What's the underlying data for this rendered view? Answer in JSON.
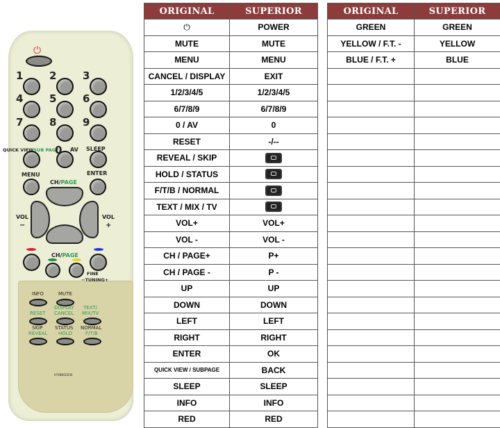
{
  "remote": {
    "numbers": [
      "1",
      "2",
      "3",
      "4",
      "5",
      "6",
      "7",
      "8",
      "9",
      "0"
    ],
    "labels": {
      "quick_view": "QUICK VIEW",
      "sub_page": "SUB PAGE",
      "av": "AV",
      "sleep": "SLEEP",
      "menu": "MENU",
      "enter": "ENTER",
      "ch": "CH/",
      "page": "PAGE",
      "vol": "VOL",
      "minus": "−",
      "plus": "+",
      "fine": "FINE",
      "tuning": "−TUNING+",
      "info": "INFO",
      "mute": "MUTE",
      "reset": "RESET",
      "display": "DISPLAY",
      "cancel": "CANCEL",
      "text": "TEXT/",
      "mix_tv": "MIX/TV",
      "skip": "SKIP",
      "reveal": "REVEAL",
      "status": "STATUS",
      "hold": "HOLD",
      "normal": "NORMAL",
      "ftb": "F/T/B",
      "model": "076N0GE030"
    },
    "colors": {
      "body": "#ecefd6",
      "panel": "#d8d4a8",
      "red": "#d4222a",
      "green": "#1f8a4c",
      "yellow": "#e8d21a",
      "blue": "#2436d8"
    }
  },
  "table_left": {
    "headers": [
      "ORIGINAL",
      "SUPERIOR"
    ],
    "rows": [
      {
        "original": "⏻",
        "original_icon": "power-icon",
        "superior": "POWER"
      },
      {
        "original": "MUTE",
        "superior": "MUTE"
      },
      {
        "original": "MENU",
        "superior": "MENU"
      },
      {
        "original": "CANCEL / DISPLAY",
        "superior": "EXIT"
      },
      {
        "original": "1/2/3/4/5",
        "superior": "1/2/3/4/5"
      },
      {
        "original": "6/7/8/9",
        "superior": "6/7/8/9"
      },
      {
        "original": "0 / AV",
        "superior": "0"
      },
      {
        "original": "RESET",
        "superior": "-/--"
      },
      {
        "original": "REVEAL / SKIP",
        "superior": "",
        "superior_icon": "teletext-reveal-icon"
      },
      {
        "original": "HOLD / STATUS",
        "superior": "",
        "superior_icon": "teletext-hold-icon"
      },
      {
        "original": "F/T/B / NORMAL",
        "superior": "",
        "superior_icon": "teletext-size-icon"
      },
      {
        "original": "TEXT / MIX / TV",
        "superior": "",
        "superior_icon": "teletext-mix-icon"
      },
      {
        "original": "VOL+",
        "superior": "VOL+"
      },
      {
        "original": "VOL -",
        "superior": "VOL -"
      },
      {
        "original": "CH / PAGE+",
        "superior": "P+"
      },
      {
        "original": "CH / PAGE -",
        "superior": "P -"
      },
      {
        "original": "UP",
        "superior": "UP"
      },
      {
        "original": "DOWN",
        "superior": "DOWN"
      },
      {
        "original": "LEFT",
        "superior": "LEFT"
      },
      {
        "original": "RIGHT",
        "superior": "RIGHT"
      },
      {
        "original": "ENTER",
        "superior": "OK"
      },
      {
        "original": "QUICK VIEW / SUBPAGE",
        "superior": "BACK"
      },
      {
        "original": "SLEEP",
        "superior": "SLEEP"
      },
      {
        "original": "INFO",
        "superior": "INFO"
      },
      {
        "original": "RED",
        "superior": "RED"
      }
    ]
  },
  "table_right": {
    "headers": [
      "ORIGINAL",
      "SUPERIOR"
    ],
    "rows": [
      {
        "original": "GREEN",
        "superior": "GREEN"
      },
      {
        "original": "YELLOW / F.T. -",
        "superior": "YELLOW"
      },
      {
        "original": "BLUE / F.T. +",
        "superior": "BLUE"
      }
    ],
    "empty_rows": 22
  },
  "header_color": "#8e3b3b"
}
